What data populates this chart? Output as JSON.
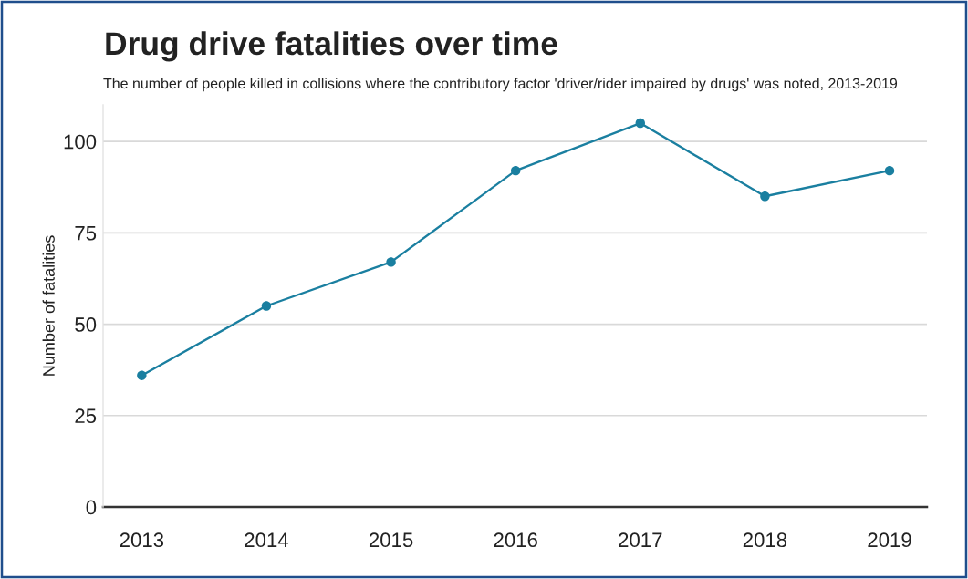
{
  "chart_data": {
    "type": "line",
    "title": "Drug drive fatalities over time",
    "subtitle": "The number of people killed in collisions where the contributory factor 'driver/rider impaired by drugs' was noted, 2013-2019",
    "ylabel": "Number of fatalities",
    "categories": [
      "2013",
      "2014",
      "2015",
      "2016",
      "2017",
      "2018",
      "2019"
    ],
    "series": [
      {
        "color": "#1a7fa0",
        "values": [
          36,
          55,
          67,
          92,
          105,
          85,
          92
        ]
      }
    ],
    "ylim": [
      0,
      110
    ],
    "yticks": [
      0,
      25,
      50,
      75,
      100
    ],
    "grid": "y",
    "marker": "circle",
    "line_style": "solid"
  }
}
